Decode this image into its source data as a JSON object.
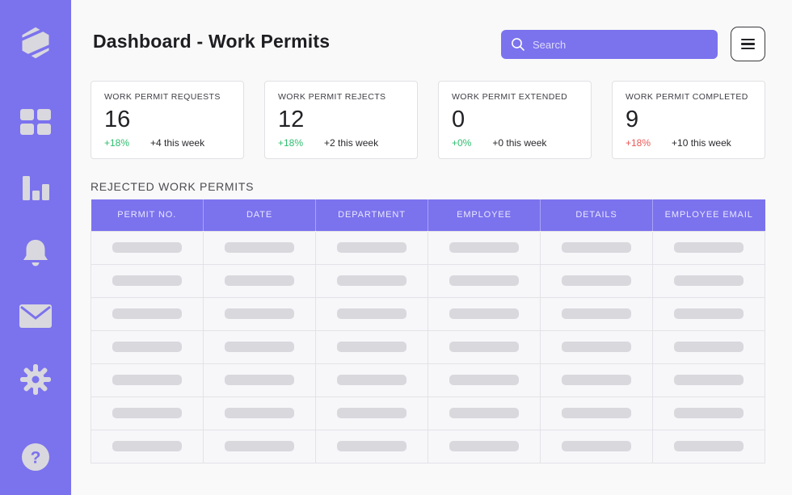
{
  "header": {
    "title": "Dashboard - Work Permits",
    "search_placeholder": "Search"
  },
  "sidebar": {
    "bg_color": "#7B72EE",
    "icon_color": "#D9D8DE",
    "items": [
      {
        "icon": "logo-icon"
      },
      {
        "icon": "dashboard-grid-icon"
      },
      {
        "icon": "stats-bars-icon"
      },
      {
        "icon": "notifications-bell-icon"
      },
      {
        "icon": "mail-envelope-icon"
      },
      {
        "icon": "settings-gear-icon"
      },
      {
        "icon": "help-question-icon"
      }
    ]
  },
  "stats": [
    {
      "label": "WORK PERMIT REQUESTS",
      "value": "16",
      "delta_pct": "+18%",
      "delta_color": "#2FBE6E",
      "delta_note": "+4 this week"
    },
    {
      "label": "WORK PERMIT REJECTS",
      "value": "12",
      "delta_pct": "+18%",
      "delta_color": "#2FBE6E",
      "delta_note": "+2 this week"
    },
    {
      "label": "WORK PERMIT EXTENDED",
      "value": "0",
      "delta_pct": "+0%",
      "delta_color": "#2FBE6E",
      "delta_note": "+0 this week"
    },
    {
      "label": "WORK PERMIT COMPLETED",
      "value": "9",
      "delta_pct": "+18%",
      "delta_color": "#EB5757",
      "delta_note": "+10 this week"
    }
  ],
  "table": {
    "section_title": "REJECTED WORK PERMITS",
    "columns": [
      "PERMIT NO.",
      "DATE",
      "DEPARTMENT",
      "EMPLOYEE",
      "DETAILS",
      "EMPLOYEE EMAIL"
    ],
    "placeholder_rows": 7
  },
  "colors": {
    "accent": "#7B72EE",
    "positive": "#2FBE6E",
    "negative": "#EB5757",
    "page_bg": "#F9F9F9"
  }
}
